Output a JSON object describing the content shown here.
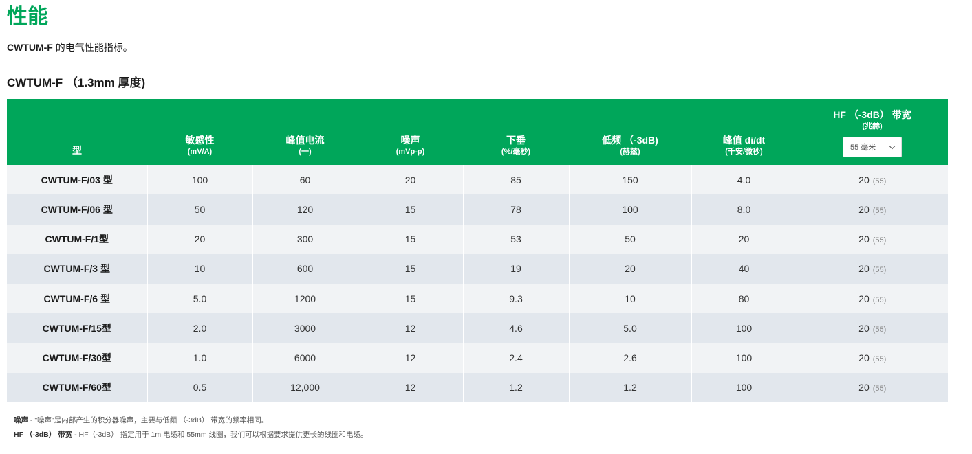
{
  "title": "性能",
  "subtitle": {
    "product": "CWTUM-F",
    "text": " 的电气性能指标。"
  },
  "section_title": "CWTUM-F （1.3mm 厚度)",
  "table": {
    "headers": [
      {
        "label": "型",
        "unit": ""
      },
      {
        "label": "敏感性",
        "unit": "(mV/A)"
      },
      {
        "label": "峰值电流",
        "unit": "(一)"
      },
      {
        "label": "噪声",
        "unit": "(mVp-p)"
      },
      {
        "label": "下垂",
        "unit": "(%/毫秒)"
      },
      {
        "label": "低频 （-3dB)",
        "unit": "(赫兹)"
      },
      {
        "label": "峰值 di/dt",
        "unit": "(千安/微秒)"
      },
      {
        "label": "HF （-3dB） 带宽",
        "unit": "(兆赫)"
      }
    ],
    "hf_select": {
      "value": "55 毫米"
    },
    "rows": [
      {
        "model": "CWTUM-F/03 型",
        "sensitivity": "100",
        "peak_current": "60",
        "noise": "20",
        "droop": "85",
        "lf": "150",
        "peak_didt": "4.0",
        "hf": "20",
        "hf_paren": "(55)"
      },
      {
        "model": "CWTUM-F/06 型",
        "sensitivity": "50",
        "peak_current": "120",
        "noise": "15",
        "droop": "78",
        "lf": "100",
        "peak_didt": "8.0",
        "hf": "20",
        "hf_paren": "(55)"
      },
      {
        "model": "CWTUM-F/1型",
        "sensitivity": "20",
        "peak_current": "300",
        "noise": "15",
        "droop": "53",
        "lf": "50",
        "peak_didt": "20",
        "hf": "20",
        "hf_paren": "(55)"
      },
      {
        "model": "CWTUM-F/3 型",
        "sensitivity": "10",
        "peak_current": "600",
        "noise": "15",
        "droop": "19",
        "lf": "20",
        "peak_didt": "40",
        "hf": "20",
        "hf_paren": "(55)"
      },
      {
        "model": "CWTUM-F/6 型",
        "sensitivity": "5.0",
        "peak_current": "1200",
        "noise": "15",
        "droop": "9.3",
        "lf": "10",
        "peak_didt": "80",
        "hf": "20",
        "hf_paren": "(55)"
      },
      {
        "model": "CWTUM-F/15型",
        "sensitivity": "2.0",
        "peak_current": "3000",
        "noise": "12",
        "droop": "4.6",
        "lf": "5.0",
        "peak_didt": "100",
        "hf": "20",
        "hf_paren": "(55)"
      },
      {
        "model": "CWTUM-F/30型",
        "sensitivity": "1.0",
        "peak_current": "6000",
        "noise": "12",
        "droop": "2.4",
        "lf": "2.6",
        "peak_didt": "100",
        "hf": "20",
        "hf_paren": "(55)"
      },
      {
        "model": "CWTUM-F/60型",
        "sensitivity": "0.5",
        "peak_current": "12,000",
        "noise": "12",
        "droop": "1.2",
        "lf": "1.2",
        "peak_didt": "100",
        "hf": "20",
        "hf_paren": "(55)"
      }
    ]
  },
  "footnotes": [
    {
      "term": "噪声",
      "text": " - \"噪声\"是内部产生的积分器噪声，主要与低频 （-3dB） 带宽的频率相同。"
    },
    {
      "term": "HF （-3dB） 带宽",
      "text": " - HF（-3dB） 指定用于 1m 电缆和 55mm 线圈，我们可以根据要求提供更长的线圈和电缆。"
    }
  ]
}
